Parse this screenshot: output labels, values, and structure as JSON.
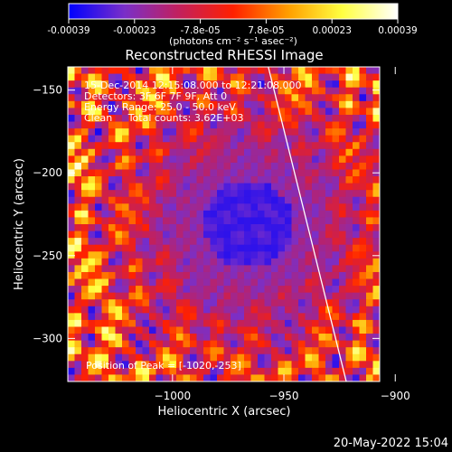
{
  "colors": {
    "background": "#000000",
    "foreground": "#ffffff"
  },
  "colorbar": {
    "tick_labels": [
      "-0.00039",
      "-0.00023",
      "-7.8e-05",
      "7.8e-05",
      "0.00023",
      "0.00039"
    ],
    "unit_label": "(photons cm⁻² s⁻¹ asec⁻²)"
  },
  "plot": {
    "title": "Reconstructed RHESSI Image",
    "annotations": [
      "15-Dec-2014 12:15:08.000 to 12:21:08.000",
      "Detectors: 3F 6F 7F 9F, Att 0",
      "Energy Range: 25.0 - 50.0 keV",
      "Clean     Total counts: 3.62E+03"
    ],
    "peak_label": "Position of Peak = [-1020,-253]"
  },
  "footer": {
    "timestamp": "20-May-2022 15:04"
  },
  "chart_data": {
    "type": "heatmap",
    "title": "Reconstructed RHESSI Image",
    "xlabel": "Heliocentric X (arcsec)",
    "ylabel": "Heliocentric Y (arcsec)",
    "xlim": [
      -1047,
      -907
    ],
    "ylim": [
      -326,
      -136
    ],
    "x_ticks": [
      -1000,
      -950,
      -900
    ],
    "x_tick_labels": [
      "−1000",
      "−950",
      "−900"
    ],
    "y_ticks": [
      -300,
      -250,
      -200,
      -150
    ],
    "y_tick_labels": [
      "−300",
      "−250",
      "−200",
      "−150"
    ],
    "colorscale": {
      "min": -0.00039,
      "max": 0.00039,
      "stops": [
        "#0000ff",
        "#7a2fc8",
        "#c02060",
        "#ff2000",
        "#ffa000",
        "#ffff40",
        "#ffffff"
      ]
    },
    "limb_line": {
      "x": [
        -957,
        -922
      ],
      "y": [
        -136,
        -326
      ]
    },
    "peak": {
      "x": -1020,
      "y": -253
    }
  }
}
